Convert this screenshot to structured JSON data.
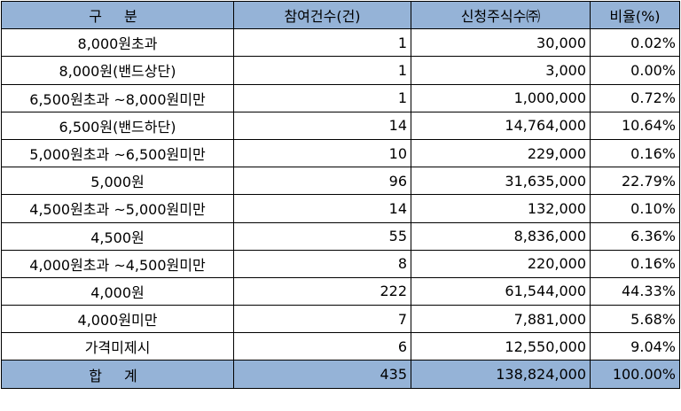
{
  "headers": [
    "구 분",
    "참여건수(건)",
    "신청주식수㈜",
    "비율(%)"
  ],
  "rows": [
    {
      "category": "8,000원초과",
      "count": "1",
      "shares": "30,000",
      "ratio": "0.02%"
    },
    {
      "category": "8,000원(밴드상단)",
      "count": "1",
      "shares": "3,000",
      "ratio": "0.00%"
    },
    {
      "category": "6,500원초과 ~8,000원미만",
      "count": "1",
      "shares": "1,000,000",
      "ratio": "0.72%"
    },
    {
      "category": "6,500원(밴드하단)",
      "count": "14",
      "shares": "14,764,000",
      "ratio": "10.64%"
    },
    {
      "category": "5,000원초과 ~6,500원미만",
      "count": "10",
      "shares": "229,000",
      "ratio": "0.16%"
    },
    {
      "category": "5,000원",
      "count": "96",
      "shares": "31,635,000",
      "ratio": "22.79%"
    },
    {
      "category": "4,500원초과 ~5,000원미만",
      "count": "14",
      "shares": "132,000",
      "ratio": "0.10%"
    },
    {
      "category": "4,500원",
      "count": "55",
      "shares": "8,836,000",
      "ratio": "6.36%"
    },
    {
      "category": "4,000원초과 ~4,500원미만",
      "count": "8",
      "shares": "220,000",
      "ratio": "0.16%"
    },
    {
      "category": "4,000원",
      "count": "222",
      "shares": "61,544,000",
      "ratio": "44.33%"
    },
    {
      "category": "4,000원미만",
      "count": "7",
      "shares": "7,881,000",
      "ratio": "5.68%"
    },
    {
      "category": "가격미제시",
      "count": "6",
      "shares": "12,550,000",
      "ratio": "9.04%"
    }
  ],
  "total": {
    "category": "합 계",
    "count": "435",
    "shares": "138,824,000",
    "ratio": "100.00%"
  },
  "colors": {
    "header_bg": "#95b3d7",
    "border": "#000000"
  }
}
